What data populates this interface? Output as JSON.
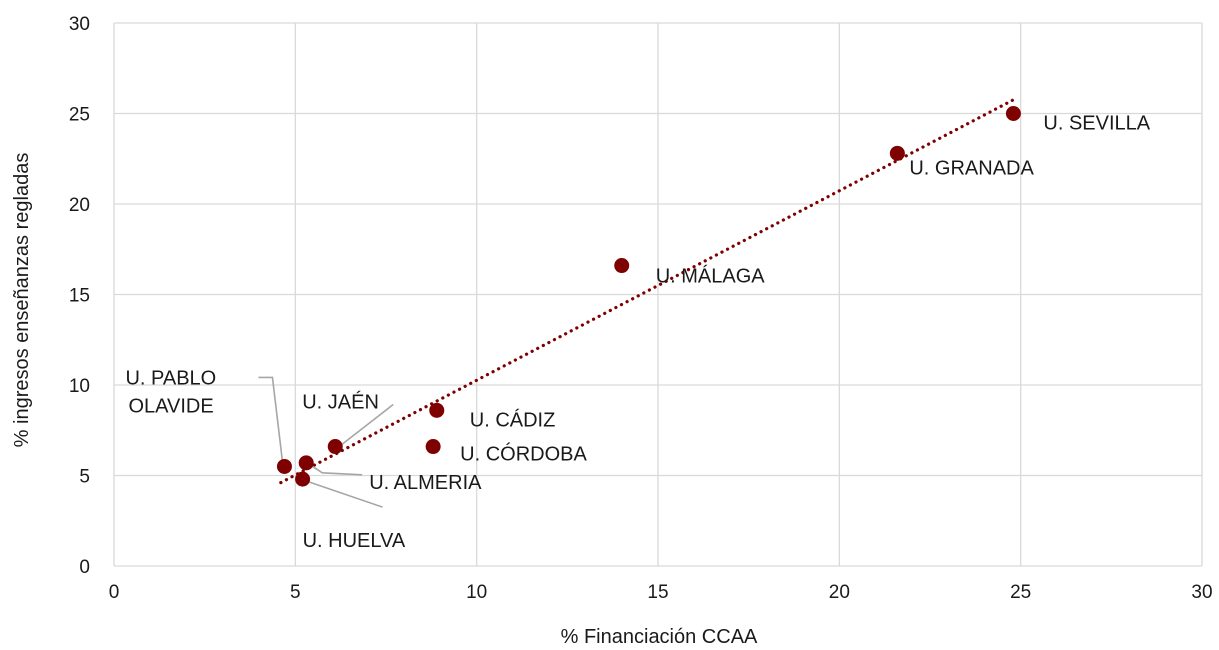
{
  "chart_data": {
    "type": "scatter",
    "title": "",
    "xlabel": "% Financiación CCAA",
    "ylabel": "% ingresos enseñanzas regladas",
    "xlim": [
      0,
      30
    ],
    "ylim": [
      0,
      30
    ],
    "xticks": [
      0,
      5,
      10,
      15,
      20,
      25,
      30
    ],
    "yticks": [
      0,
      5,
      10,
      15,
      20,
      25,
      30
    ],
    "grid": true,
    "legend": "none",
    "marker_color": "#7f0000",
    "trendline": {
      "type": "linear",
      "style": "dotted",
      "color": "#7f0000",
      "x_range": [
        4.6,
        24.9
      ]
    },
    "points": [
      {
        "label": "U. SEVILLA",
        "x": 24.8,
        "y": 25.0
      },
      {
        "label": "U. GRANADA",
        "x": 21.6,
        "y": 22.8
      },
      {
        "label": "U. MÁLAGA",
        "x": 14.0,
        "y": 16.6
      },
      {
        "label": "U. CÁDIZ",
        "x": 8.9,
        "y": 8.6
      },
      {
        "label": "U. CÓRDOBA",
        "x": 8.8,
        "y": 6.6
      },
      {
        "label": "U. JAÉN",
        "x": 6.1,
        "y": 6.6
      },
      {
        "label": "U. ALMERIA",
        "x": 5.3,
        "y": 5.7
      },
      {
        "label": "U. HUELVA",
        "x": 5.2,
        "y": 4.8
      },
      {
        "label": "U. PABLO OLAVIDE",
        "label_lines": [
          "U. PABLO",
          "OLAVIDE"
        ],
        "x": 4.7,
        "y": 5.5
      }
    ]
  }
}
